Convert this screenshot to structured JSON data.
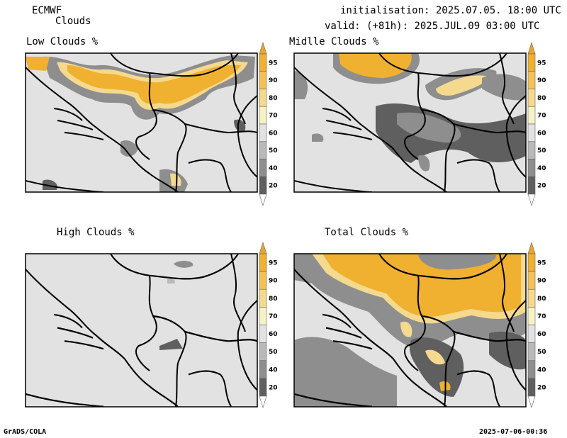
{
  "header": {
    "model": "ECMWF",
    "product": "Clouds",
    "init": "initialisation: 2025.07.05. 18:00 UTC",
    "valid": "valid: (+81h): 2025.JUL.09 03:00 UTC"
  },
  "panels": [
    {
      "title": "Low Clouds %"
    },
    {
      "title": "Midlle Clouds %"
    },
    {
      "title": "High Clouds %"
    },
    {
      "title": "Total Clouds %"
    }
  ],
  "legend": {
    "levels": [
      "95",
      "90",
      "80",
      "70",
      "60",
      "50",
      "40",
      "20"
    ],
    "colors": [
      "#f0b030",
      "#f3c157",
      "#f5d98e",
      "#f6f2c6",
      "#e2e2e2",
      "#b9b9b9",
      "#8e8e8e",
      "#5f5f5f",
      "#ffffff",
      "#e8a62b"
    ]
  },
  "colors": {
    "land": "#e2e2e2",
    "cloud_high": "#f0b030",
    "cloud_mid": "#f5d98e",
    "cloud_low_gray": "#8e8e8e",
    "cloud_dark_gray": "#5f5f5f"
  },
  "footer": {
    "left": "GrADS/COLA",
    "right": "2025-07-06-00:36"
  }
}
